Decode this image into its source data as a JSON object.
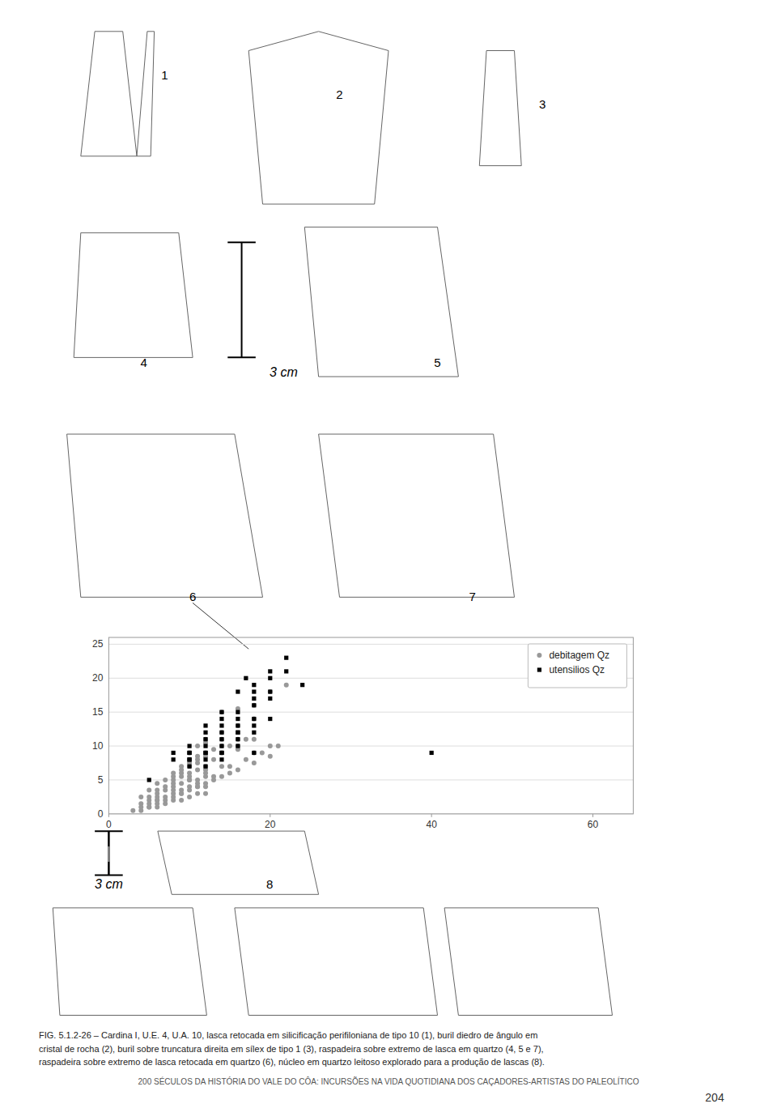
{
  "chart_data": {
    "type": "scatter",
    "annotations": [
      "1",
      "2",
      "3",
      "4",
      "3 cm",
      "5",
      "6",
      "7",
      "3 cm",
      "8",
      "FIG. 5.1.2-26 – Cardina I, U.E. 4, U.A. 10, lasca retocada em silicificação perifiloniana de tipo 10 (1), buril diedro de ângulo em\ncristal de rocha (2), buril sobre truncatura direita em sílex de tipo 1 (3), raspadeira sobre extremo de lasca em quartzo (4, 5 e 7),\nraspadeira sobre extremo de lasca retocada em quartzo (6), núcleo em quartzo leitoso explorado para a produção de lascas (8).",
      "200 SÉCULOS DA HISTÓRIA DO VALE DO CÔA: INCURSÕES NA VIDA QUOTIDIANA DOS CAÇADORES-ARTISTAS DO PALEOLÍTICO",
      "204"
    ],
    "series": [
      {
        "name": "debitagem Qz",
        "color": "#999999",
        "marker": "circle",
        "x": [
          5,
          6,
          7,
          8,
          9,
          10,
          11,
          12,
          5,
          6,
          7,
          8,
          9,
          10,
          11,
          12,
          6,
          7,
          8,
          9,
          10,
          11,
          12,
          7,
          8,
          9,
          10,
          11,
          12,
          8,
          9,
          10,
          11,
          13,
          9,
          10,
          11,
          12,
          10,
          11,
          12,
          14,
          12,
          14,
          16,
          14,
          16,
          18,
          14,
          16,
          18,
          20,
          22,
          4,
          5,
          6,
          4,
          8,
          10,
          12,
          14,
          16,
          18,
          20,
          6,
          8,
          10,
          12,
          14,
          16,
          18,
          9,
          11,
          13,
          15,
          17,
          19,
          21,
          5,
          7,
          9,
          11,
          13,
          15,
          17,
          6,
          8,
          10,
          12,
          4,
          5,
          6,
          7,
          8,
          9,
          10,
          11,
          12,
          13,
          14,
          15,
          16,
          18,
          20,
          3,
          4,
          5,
          6
        ],
        "values": [
          1,
          1,
          1.5,
          2,
          2,
          2.5,
          3,
          3,
          2,
          2,
          2.5,
          3,
          3.5,
          4,
          4,
          4,
          3,
          3.5,
          4,
          4.5,
          5,
          5,
          5.5,
          4,
          5,
          5.5,
          6,
          6.5,
          7,
          5.5,
          6,
          7,
          7.5,
          8,
          7,
          8,
          8.5,
          9,
          9,
          10,
          10.5,
          10,
          11,
          11,
          11,
          12,
          13,
          14,
          15,
          15.5,
          16,
          18,
          19,
          1.5,
          2.5,
          3.5,
          2.5,
          4.5,
          5.5,
          6,
          7,
          10,
          11,
          10,
          4.5,
          6,
          7.5,
          8.5,
          9,
          9.5,
          9,
          3,
          4.5,
          5.5,
          7,
          8,
          9,
          10,
          3.5,
          5,
          6.5,
          8,
          9.5,
          10,
          11,
          2,
          3.5,
          5,
          6.5,
          0.5,
          1,
          1.5,
          2,
          2.5,
          3,
          3.5,
          4,
          4.5,
          5,
          5.5,
          6,
          6.5,
          7.5,
          8.5,
          0.5,
          1,
          1.5,
          2.5
        ]
      },
      {
        "name": "utensilios Qz",
        "color": "#000000",
        "marker": "square",
        "x": [
          17,
          20,
          22,
          18,
          20,
          22,
          24,
          16,
          18,
          20,
          18,
          20,
          14,
          16,
          18,
          16,
          18,
          20,
          14,
          16,
          18,
          14,
          16,
          18,
          12,
          14,
          16,
          12,
          14,
          16,
          12,
          14,
          16,
          10,
          12,
          14,
          10,
          12,
          14,
          10,
          12,
          8,
          10,
          12,
          8,
          10,
          10,
          12,
          14,
          5,
          18,
          40
        ],
        "values": [
          20,
          21,
          23,
          19,
          20,
          21,
          19,
          18,
          18,
          18,
          17,
          17,
          15,
          15,
          16,
          14,
          14,
          14,
          14,
          13,
          13,
          13,
          12,
          12,
          13,
          12,
          12,
          12,
          11,
          11,
          11,
          10,
          10,
          10,
          10,
          9,
          9,
          9,
          9,
          9,
          9,
          9,
          8,
          8,
          8,
          8,
          7,
          7,
          8,
          5,
          9,
          9
        ]
      }
    ],
    "xlim": [
      0,
      65
    ],
    "ylim": [
      0,
      26
    ],
    "xticks": [
      0,
      20,
      40,
      60
    ],
    "yticks": [
      0,
      5,
      10,
      15,
      20,
      25
    ],
    "grid": "y",
    "legend": "top-right"
  }
}
